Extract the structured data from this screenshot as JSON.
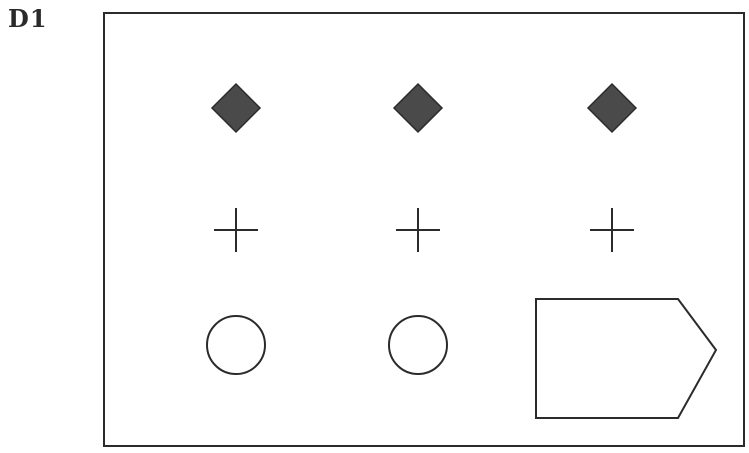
{
  "puzzle": {
    "label": "D1"
  },
  "grid": {
    "rows": [
      [
        "diamond",
        "diamond",
        "diamond"
      ],
      [
        "cross",
        "cross",
        "cross"
      ],
      [
        "circle",
        "circle",
        "answer-box"
      ]
    ]
  },
  "colors": {
    "ink": "#2b2b2b",
    "diamond_fill": "#4a4a4a",
    "background": "#ffffff"
  }
}
